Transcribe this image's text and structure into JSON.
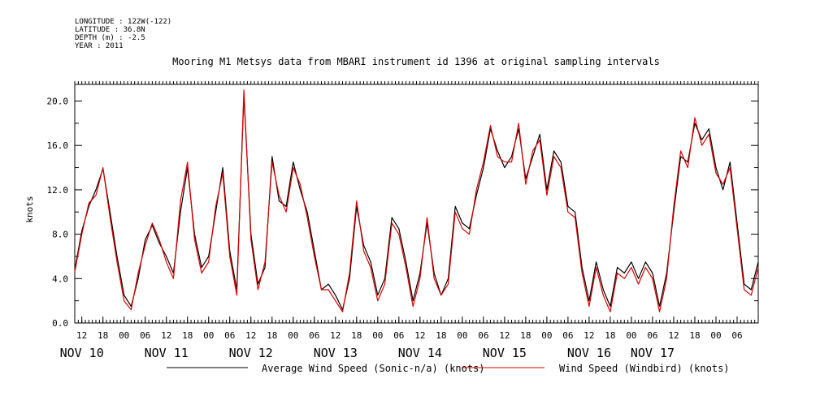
{
  "header": {
    "meta_lines": [
      "LONGITUDE : 122W(-122)",
      "LATITUDE : 36.8N",
      "DEPTH (m) : -2.5",
      "YEAR : 2011"
    ],
    "title": "Mooring M1 Metsys data from MBARI instrument id 1396 at original sampling intervals"
  },
  "colors": {
    "series_average": "#000000",
    "series_windbird": "#dd0000",
    "axis": "#000000",
    "background": "#ffffff"
  },
  "chart_data": {
    "type": "line",
    "title": "Mooring M1 Metsys data from MBARI instrument id 1396 at original sampling intervals",
    "ylabel": "knots",
    "xlabel": "",
    "ylim": [
      0,
      21.5
    ],
    "xlim_hours": [
      226,
      420
    ],
    "x_units": "hours since 2011-11-01 00:00",
    "y_ticks": [
      "0.0",
      "4.0",
      "8.0",
      "12.0",
      "16.0",
      "20.0"
    ],
    "x_hour_ticks": [
      {
        "hour": 228,
        "label": "12"
      },
      {
        "hour": 234,
        "label": "18"
      },
      {
        "hour": 240,
        "label": "00"
      },
      {
        "hour": 246,
        "label": "06"
      },
      {
        "hour": 252,
        "label": "12"
      },
      {
        "hour": 258,
        "label": "18"
      },
      {
        "hour": 264,
        "label": "00"
      },
      {
        "hour": 270,
        "label": "06"
      },
      {
        "hour": 276,
        "label": "12"
      },
      {
        "hour": 282,
        "label": "18"
      },
      {
        "hour": 288,
        "label": "00"
      },
      {
        "hour": 294,
        "label": "06"
      },
      {
        "hour": 300,
        "label": "12"
      },
      {
        "hour": 306,
        "label": "18"
      },
      {
        "hour": 312,
        "label": "00"
      },
      {
        "hour": 318,
        "label": "06"
      },
      {
        "hour": 324,
        "label": "12"
      },
      {
        "hour": 330,
        "label": "18"
      },
      {
        "hour": 336,
        "label": "00"
      },
      {
        "hour": 342,
        "label": "06"
      },
      {
        "hour": 348,
        "label": "12"
      },
      {
        "hour": 354,
        "label": "18"
      },
      {
        "hour": 360,
        "label": "00"
      },
      {
        "hour": 366,
        "label": "06"
      },
      {
        "hour": 372,
        "label": "12"
      },
      {
        "hour": 378,
        "label": "18"
      },
      {
        "hour": 384,
        "label": "00"
      },
      {
        "hour": 390,
        "label": "06"
      },
      {
        "hour": 396,
        "label": "12"
      },
      {
        "hour": 402,
        "label": "18"
      },
      {
        "hour": 408,
        "label": "00"
      },
      {
        "hour": 414,
        "label": "06"
      }
    ],
    "x_day_labels": [
      {
        "hour": 228,
        "label": "NOV 10"
      },
      {
        "hour": 252,
        "label": "NOV 11"
      },
      {
        "hour": 276,
        "label": "NOV 12"
      },
      {
        "hour": 300,
        "label": "NOV 13"
      },
      {
        "hour": 324,
        "label": "NOV 14"
      },
      {
        "hour": 348,
        "label": "NOV 15"
      },
      {
        "hour": 372,
        "label": "NOV 16"
      },
      {
        "hour": 390,
        "label": "NOV 17"
      }
    ],
    "x": [
      226,
      228,
      230,
      232,
      234,
      236,
      238,
      240,
      242,
      244,
      246,
      248,
      250,
      252,
      254,
      256,
      258,
      260,
      262,
      264,
      266,
      268,
      270,
      272,
      274,
      276,
      278,
      280,
      282,
      284,
      286,
      288,
      290,
      292,
      294,
      296,
      298,
      300,
      302,
      304,
      306,
      308,
      310,
      312,
      314,
      316,
      318,
      320,
      322,
      324,
      326,
      328,
      330,
      332,
      334,
      336,
      338,
      340,
      342,
      344,
      346,
      348,
      350,
      352,
      354,
      356,
      358,
      360,
      362,
      364,
      366,
      368,
      370,
      372,
      374,
      376,
      378,
      380,
      382,
      384,
      386,
      388,
      390,
      392,
      394,
      396,
      398,
      400,
      402,
      404,
      406,
      408,
      410,
      412,
      414,
      416,
      418,
      420
    ],
    "series": [
      {
        "name": "Average Wind Speed (Sonic-n/a) (knots)",
        "color": "#000000",
        "values": [
          4.8,
          8.3,
          10.5,
          12.0,
          13.9,
          10.0,
          6.0,
          2.5,
          1.5,
          4.0,
          7.5,
          8.8,
          7.2,
          6.0,
          4.5,
          10.0,
          14.0,
          8.0,
          5.0,
          6.0,
          10.0,
          14.0,
          6.5,
          3.0,
          20.5,
          8.0,
          3.5,
          5.0,
          15.0,
          11.0,
          10.5,
          14.5,
          12.0,
          10.0,
          6.5,
          3.0,
          3.5,
          2.5,
          1.2,
          4.0,
          10.5,
          7.0,
          5.5,
          2.5,
          4.0,
          9.5,
          8.5,
          5.5,
          2.0,
          4.5,
          9.0,
          4.5,
          2.5,
          4.0,
          10.5,
          9.0,
          8.5,
          11.5,
          14.0,
          17.5,
          15.5,
          14.0,
          15.0,
          17.5,
          13.0,
          15.0,
          17.0,
          12.0,
          15.5,
          14.5,
          10.5,
          10.0,
          5.0,
          2.0,
          5.5,
          3.0,
          1.5,
          5.0,
          4.5,
          5.5,
          4.0,
          5.5,
          4.5,
          1.5,
          4.5,
          10.0,
          15.0,
          14.5,
          18.0,
          16.5,
          17.5,
          14.0,
          12.0,
          14.5,
          9.0,
          3.5,
          3.0,
          5.5
        ]
      },
      {
        "name": "Wind Speed (Windbird) (knots)",
        "color": "#dd0000",
        "values": [
          4.6,
          8.0,
          10.8,
          11.5,
          14.0,
          9.5,
          5.5,
          2.0,
          1.2,
          4.5,
          7.0,
          9.0,
          7.5,
          5.5,
          4.0,
          11.0,
          14.5,
          7.5,
          4.5,
          5.5,
          10.5,
          13.5,
          6.0,
          2.5,
          21.0,
          7.5,
          3.0,
          5.5,
          14.5,
          11.5,
          10.0,
          14.0,
          12.5,
          9.5,
          6.0,
          3.0,
          3.0,
          2.0,
          1.0,
          4.5,
          11.0,
          6.5,
          5.0,
          2.0,
          3.5,
          9.0,
          8.0,
          5.0,
          1.5,
          4.0,
          9.5,
          4.0,
          2.5,
          3.5,
          10.0,
          8.5,
          8.0,
          12.0,
          14.5,
          17.8,
          15.0,
          14.5,
          14.5,
          18.0,
          12.5,
          15.5,
          16.5,
          11.5,
          15.0,
          14.0,
          10.0,
          9.5,
          4.5,
          1.5,
          5.0,
          2.5,
          1.0,
          4.5,
          4.0,
          5.0,
          3.5,
          5.0,
          4.0,
          1.0,
          4.0,
          10.5,
          15.5,
          14.0,
          18.5,
          16.0,
          17.0,
          13.5,
          12.5,
          14.0,
          8.5,
          3.0,
          2.5,
          5.0
        ]
      }
    ]
  }
}
